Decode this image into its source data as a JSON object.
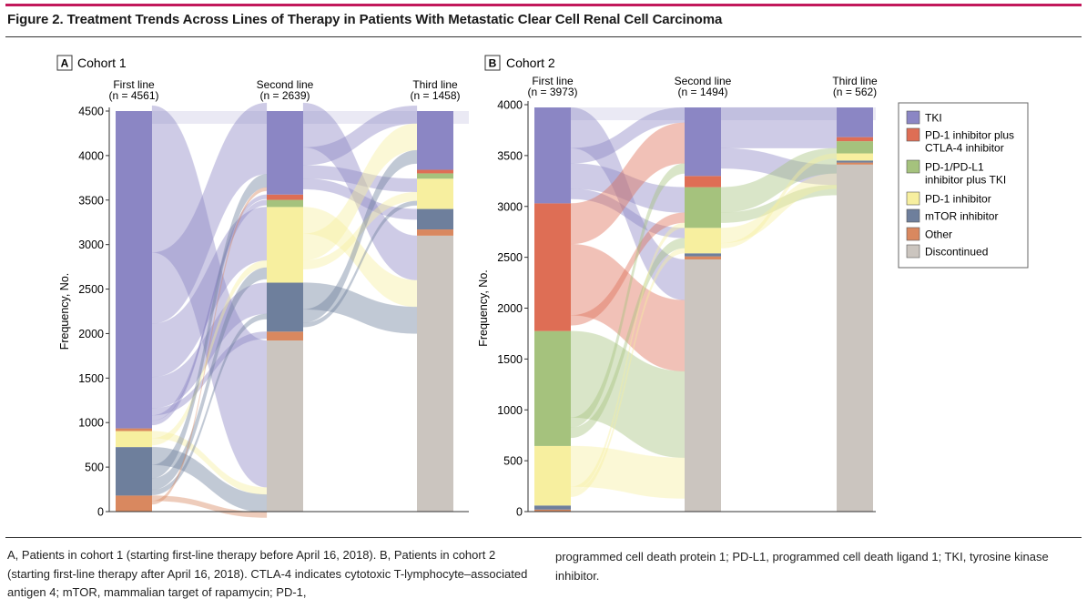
{
  "figure": {
    "title": "Figure 2. Treatment Trends Across Lines of Therapy in Patients With Metastatic Clear Cell Renal Cell Carcinoma",
    "caption_left": "A, Patients in cohort 1 (starting first-line therapy before April 16, 2018). B, Patients in cohort 2 (starting first-line therapy after April 16, 2018). CTLA-4 indicates cytotoxic T-lymphocyte–associated antigen 4; mTOR, mammalian target of rapamycin; PD-1,",
    "caption_right": "programmed cell death protein 1; PD-L1, programmed cell death ligand 1; TKI, tyrosine kinase inhibitor."
  },
  "colors": {
    "TKI": "#8b86c4",
    "PD-1 inhibitor plus CTLA-4 inhibitor": "#de6e55",
    "PD-1/PD-L1 inhibitor plus TKI": "#a5c27d",
    "PD-1 inhibitor": "#f7ef9f",
    "mTOR inhibitor": "#6e7f9c",
    "Other": "#d9885f",
    "Discontinued": "#cbc5bf"
  },
  "legend": {
    "items": [
      {
        "key": "TKI",
        "label": "TKI"
      },
      {
        "key": "PD-1 inhibitor plus CTLA-4 inhibitor",
        "label": "PD-1 inhibitor plus CTLA-4 inhibitor"
      },
      {
        "key": "PD-1/PD-L1 inhibitor plus TKI",
        "label": "PD-1/PD-L1 inhibitor plus TKI"
      },
      {
        "key": "PD-1 inhibitor",
        "label": "PD-1 inhibitor"
      },
      {
        "key": "mTOR inhibitor",
        "label": "mTOR inhibitor"
      },
      {
        "key": "Other",
        "label": "Other"
      },
      {
        "key": "Discontinued",
        "label": "Discontinued"
      }
    ]
  },
  "chart_data": [
    {
      "type": "sankey",
      "panel_letter": "A",
      "title": "Cohort 1",
      "ylabel": "Frequency, No.",
      "ylim": [
        0,
        4500
      ],
      "yticks": [
        0,
        500,
        1000,
        1500,
        2000,
        2500,
        3000,
        3500,
        4000,
        4500
      ],
      "columns": [
        {
          "label": "First line",
          "n_label": "(n = 4561)",
          "total": 4561,
          "segments": [
            [
              "Other",
              180
            ],
            [
              "mTOR inhibitor",
              545
            ],
            [
              "PD-1 inhibitor",
              180
            ],
            [
              "Other",
              30
            ],
            [
              "TKI",
              3626
            ]
          ]
        },
        {
          "label": "Second line",
          "n_label": "(n = 2639)",
          "total": 2639,
          "segments": [
            [
              "Discontinued",
              1922
            ],
            [
              "Other",
              100
            ],
            [
              "mTOR inhibitor",
              550
            ],
            [
              "PD-1 inhibitor",
              850
            ],
            [
              "PD-1/PD-L1 inhibitor plus TKI",
              80
            ],
            [
              "PD-1 inhibitor plus CTLA-4 inhibitor",
              60
            ],
            [
              "TKI",
              1030
            ]
          ]
        },
        {
          "label": "Third line",
          "n_label": "(n = 1458)",
          "total": 1458,
          "segments": [
            [
              "Discontinued",
              3100
            ],
            [
              "Other",
              70
            ],
            [
              "mTOR inhibitor",
              230
            ],
            [
              "PD-1 inhibitor",
              340
            ],
            [
              "PD-1/PD-L1 inhibitor plus TKI",
              60
            ],
            [
              "PD-1 inhibitor plus CTLA-4 inhibitor",
              40
            ],
            [
              "TKI",
              720
            ]
          ]
        }
      ],
      "flows": [
        {
          "from": [
            0,
            4
          ],
          "to": [
            1,
            0
          ],
          "value": 1650
        },
        {
          "from": [
            0,
            4
          ],
          "to": [
            1,
            6
          ],
          "value": 800
        },
        {
          "from": [
            0,
            4
          ],
          "to": [
            1,
            3
          ],
          "value": 600
        },
        {
          "from": [
            0,
            4
          ],
          "to": [
            1,
            2
          ],
          "value": 350
        },
        {
          "from": [
            0,
            4
          ],
          "to": [
            1,
            1
          ],
          "value": 80
        },
        {
          "from": [
            0,
            4
          ],
          "to": [
            1,
            4
          ],
          "value": 60
        },
        {
          "from": [
            0,
            4
          ],
          "to": [
            1,
            5
          ],
          "value": 50
        },
        {
          "from": [
            0,
            2
          ],
          "to": [
            1,
            0
          ],
          "value": 80
        },
        {
          "from": [
            0,
            2
          ],
          "to": [
            1,
            3
          ],
          "value": 80
        },
        {
          "from": [
            0,
            1
          ],
          "to": [
            1,
            0
          ],
          "value": 200
        },
        {
          "from": [
            0,
            1
          ],
          "to": [
            1,
            6
          ],
          "value": 150
        },
        {
          "from": [
            0,
            1
          ],
          "to": [
            1,
            3
          ],
          "value": 130
        },
        {
          "from": [
            0,
            1
          ],
          "to": [
            1,
            2
          ],
          "value": 60
        },
        {
          "from": [
            0,
            0
          ],
          "to": [
            1,
            0
          ],
          "value": 60
        },
        {
          "from": [
            0,
            0
          ],
          "to": [
            1,
            6
          ],
          "value": 40
        },
        {
          "from": [
            1,
            6
          ],
          "to": [
            2,
            0
          ],
          "value": 500
        },
        {
          "from": [
            1,
            6
          ],
          "to": [
            2,
            6
          ],
          "value": 200
        },
        {
          "from": [
            1,
            6
          ],
          "to": [
            2,
            3
          ],
          "value": 150
        },
        {
          "from": [
            1,
            6
          ],
          "to": [
            2,
            2
          ],
          "value": 120
        },
        {
          "from": [
            1,
            3
          ],
          "to": [
            2,
            0
          ],
          "value": 300
        },
        {
          "from": [
            1,
            3
          ],
          "to": [
            2,
            6
          ],
          "value": 300
        },
        {
          "from": [
            1,
            3
          ],
          "to": [
            2,
            3
          ],
          "value": 100
        },
        {
          "from": [
            1,
            2
          ],
          "to": [
            2,
            0
          ],
          "value": 300
        },
        {
          "from": [
            1,
            2
          ],
          "to": [
            2,
            6
          ],
          "value": 150
        },
        {
          "from": [
            1,
            2
          ],
          "to": [
            2,
            3
          ],
          "value": 50
        }
      ]
    },
    {
      "type": "sankey",
      "panel_letter": "B",
      "title": "Cohort 2",
      "ylabel": "Frequency, No.",
      "ylim": [
        0,
        4000
      ],
      "yticks": [
        0,
        500,
        1000,
        1500,
        2000,
        2500,
        3000,
        3500,
        4000
      ],
      "columns": [
        {
          "label": "First line",
          "n_label": "(n = 3973)",
          "total": 3973,
          "segments": [
            [
              "Other",
              20
            ],
            [
              "mTOR inhibitor",
              40
            ],
            [
              "PD-1 inhibitor",
              585
            ],
            [
              "PD-1/PD-L1 inhibitor plus TKI",
              1130
            ],
            [
              "PD-1 inhibitor plus CTLA-4 inhibitor",
              1255
            ],
            [
              "TKI",
              943
            ]
          ]
        },
        {
          "label": "Second line",
          "n_label": "(n = 1494)",
          "total": 1494,
          "segments": [
            [
              "Discontinued",
              2479
            ],
            [
              "Other",
              30
            ],
            [
              "mTOR inhibitor",
              30
            ],
            [
              "PD-1 inhibitor",
              250
            ],
            [
              "PD-1/PD-L1 inhibitor plus TKI",
              400
            ],
            [
              "PD-1 inhibitor plus CTLA-4 inhibitor",
              110
            ],
            [
              "TKI",
              674
            ]
          ]
        },
        {
          "label": "Third line",
          "n_label": "(n = 562)",
          "total": 562,
          "segments": [
            [
              "Discontinued",
              3411
            ],
            [
              "Other",
              20
            ],
            [
              "mTOR inhibitor",
              20
            ],
            [
              "PD-1 inhibitor",
              70
            ],
            [
              "PD-1/PD-L1 inhibitor plus TKI",
              120
            ],
            [
              "PD-1 inhibitor plus CTLA-4 inhibitor",
              40
            ],
            [
              "TKI",
              292
            ]
          ]
        }
      ],
      "flows": [
        {
          "from": [
            0,
            5
          ],
          "to": [
            1,
            0
          ],
          "value": 400
        },
        {
          "from": [
            0,
            5
          ],
          "to": [
            1,
            6
          ],
          "value": 150
        },
        {
          "from": [
            0,
            5
          ],
          "to": [
            1,
            4
          ],
          "value": 250
        },
        {
          "from": [
            0,
            5
          ],
          "to": [
            1,
            3
          ],
          "value": 100
        },
        {
          "from": [
            0,
            4
          ],
          "to": [
            1,
            6
          ],
          "value": 400
        },
        {
          "from": [
            0,
            4
          ],
          "to": [
            1,
            0
          ],
          "value": 700
        },
        {
          "from": [
            0,
            4
          ],
          "to": [
            1,
            4
          ],
          "value": 100
        },
        {
          "from": [
            0,
            3
          ],
          "to": [
            1,
            0
          ],
          "value": 850
        },
        {
          "from": [
            0,
            3
          ],
          "to": [
            1,
            6
          ],
          "value": 100
        },
        {
          "from": [
            0,
            3
          ],
          "to": [
            1,
            3
          ],
          "value": 100
        },
        {
          "from": [
            0,
            2
          ],
          "to": [
            1,
            0
          ],
          "value": 400
        },
        {
          "from": [
            0,
            2
          ],
          "to": [
            1,
            4
          ],
          "value": 50
        },
        {
          "from": [
            0,
            2
          ],
          "to": [
            1,
            3
          ],
          "value": 50
        },
        {
          "from": [
            1,
            6
          ],
          "to": [
            2,
            6
          ],
          "value": 400
        },
        {
          "from": [
            1,
            6
          ],
          "to": [
            2,
            0
          ],
          "value": 200
        },
        {
          "from": [
            1,
            4
          ],
          "to": [
            2,
            6
          ],
          "value": 250
        },
        {
          "from": [
            1,
            4
          ],
          "to": [
            2,
            0
          ],
          "value": 100
        },
        {
          "from": [
            1,
            3
          ],
          "to": [
            2,
            6
          ],
          "value": 150
        },
        {
          "from": [
            1,
            3
          ],
          "to": [
            2,
            3
          ],
          "value": 50
        }
      ]
    }
  ]
}
